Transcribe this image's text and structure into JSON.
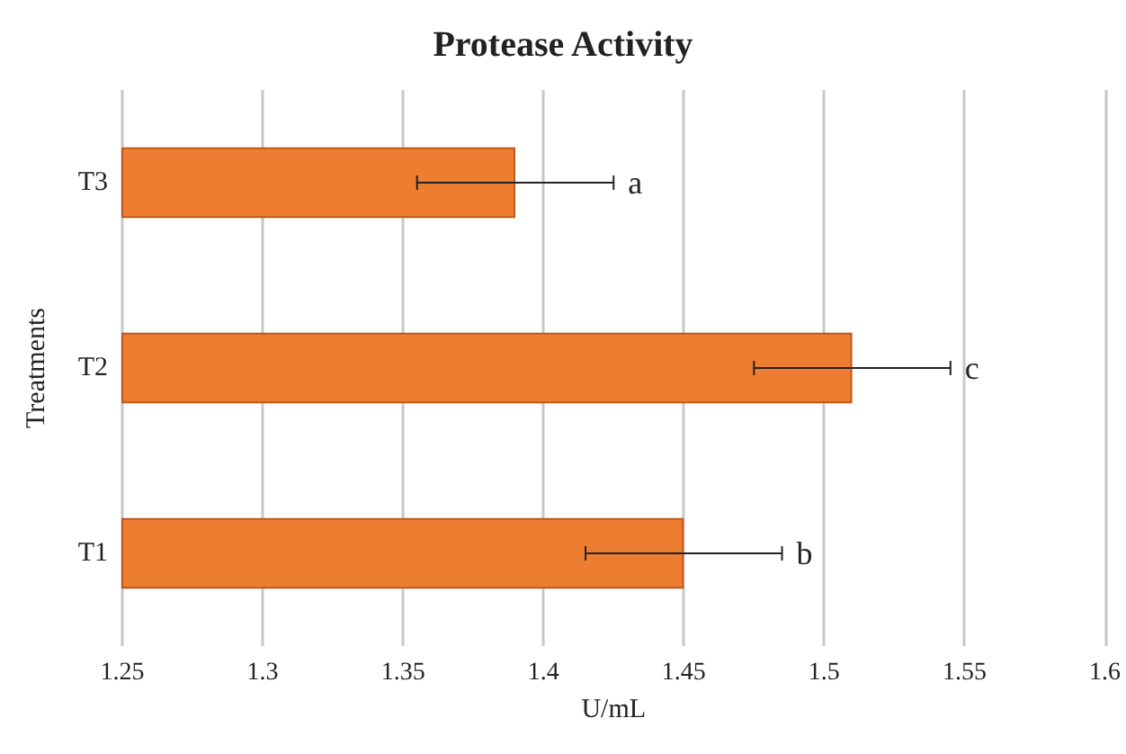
{
  "chart_data": {
    "type": "bar",
    "orientation": "horizontal",
    "title": "Protease Activity",
    "xlabel": "U/mL",
    "ylabel": "Treatments",
    "categories": [
      "T3",
      "T2",
      "T1"
    ],
    "values": [
      1.39,
      1.51,
      1.45
    ],
    "errors": [
      0.035,
      0.035,
      0.035
    ],
    "color": "#ed7d31",
    "xlim": [
      1.25,
      1.6
    ],
    "xticks": [
      1.25,
      1.3,
      1.35,
      1.4,
      1.45,
      1.5,
      1.55,
      1.6
    ],
    "grid": "x",
    "annotations": [
      "a",
      "c",
      "b"
    ]
  }
}
